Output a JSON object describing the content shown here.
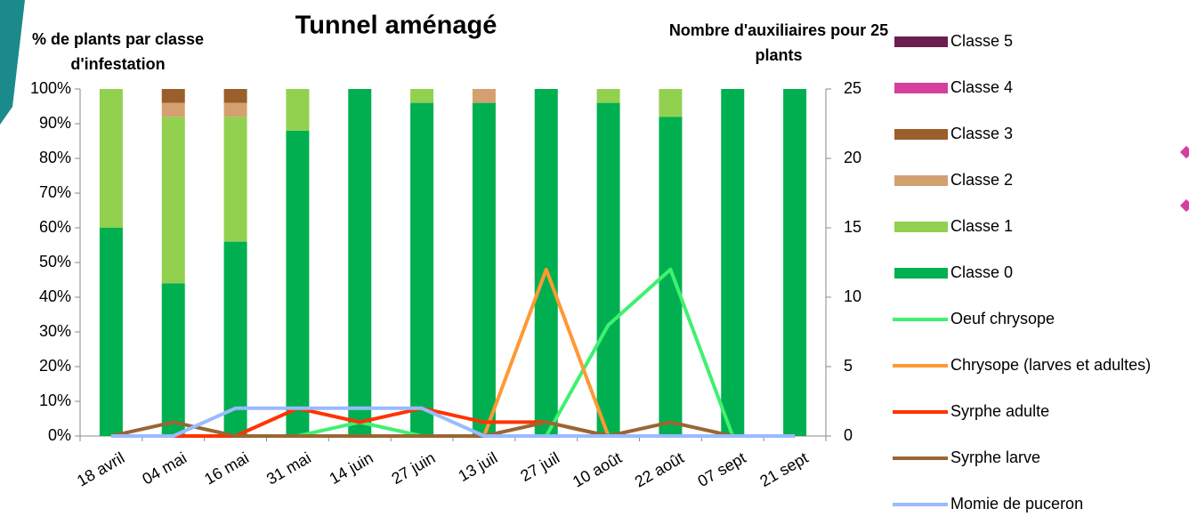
{
  "chart_data": {
    "type": "bar",
    "title": "Tunnel aménagé",
    "y_label": "% de plants par classe d'infestation",
    "y2_label": "Nombre d'auxiliaires pour 25 plants",
    "categories": [
      "18 avril",
      "04 mai",
      "16 mai",
      "31 mai",
      "14 juin",
      "27 juin",
      "13 juil",
      "27 juil",
      "10 août",
      "22 août",
      "07 sept",
      "21 sept"
    ],
    "ylim": [
      0,
      100
    ],
    "yticks": [
      {
        "value": 0,
        "label": "0%"
      },
      {
        "value": 10,
        "label": "10%"
      },
      {
        "value": 20,
        "label": "20%"
      },
      {
        "value": 30,
        "label": "30%"
      },
      {
        "value": 40,
        "label": "40%"
      },
      {
        "value": 50,
        "label": "50%"
      },
      {
        "value": 60,
        "label": "60%"
      },
      {
        "value": 70,
        "label": "70%"
      },
      {
        "value": 80,
        "label": "80%"
      },
      {
        "value": 90,
        "label": "90%"
      },
      {
        "value": 100,
        "label": "100%"
      }
    ],
    "y2lim": [
      0,
      25
    ],
    "y2ticks": [
      0,
      5,
      10,
      15,
      20,
      25
    ],
    "series": [
      {
        "name": "Classe 5",
        "color": "#6b1f4f",
        "values": [
          0,
          0,
          0,
          0,
          0,
          0,
          0,
          0,
          0,
          0,
          0,
          0
        ]
      },
      {
        "name": "Classe 4",
        "color": "#d63fa0",
        "values": [
          0,
          0,
          0,
          0,
          0,
          0,
          0,
          0,
          0,
          0,
          0,
          0
        ]
      },
      {
        "name": "Classe 3",
        "color": "#9a5f2a",
        "values": [
          0,
          4,
          4,
          0,
          0,
          0,
          0,
          0,
          0,
          0,
          0,
          0
        ]
      },
      {
        "name": "Classe 2",
        "color": "#d4a070",
        "values": [
          0,
          4,
          4,
          0,
          0,
          0,
          4,
          0,
          0,
          0,
          0,
          0
        ]
      },
      {
        "name": "Classe 1",
        "color": "#92d050",
        "values": [
          40,
          48,
          36,
          12,
          0,
          4,
          0,
          0,
          4,
          8,
          0,
          0
        ]
      },
      {
        "name": "Classe 0",
        "color": "#00b050",
        "values": [
          60,
          44,
          56,
          88,
          100,
          96,
          96,
          100,
          96,
          92,
          100,
          100
        ]
      },
      {
        "name": "Oeuf chrysope",
        "color": "#40f070",
        "axis": "y2",
        "values": [
          0,
          0,
          0,
          0,
          1,
          0,
          0,
          0,
          8,
          12,
          0,
          0
        ]
      },
      {
        "name": "Chrysope (larves et adultes)",
        "color": "#ff9933",
        "axis": "y2",
        "values": [
          0,
          0,
          0,
          0,
          0,
          0,
          0,
          12,
          0,
          0,
          0,
          0
        ]
      },
      {
        "name": "Syrphe adulte",
        "color": "#ff3300",
        "axis": "y2",
        "values": [
          0,
          0,
          0,
          2,
          1,
          2,
          1,
          1,
          0,
          0,
          0,
          0
        ]
      },
      {
        "name": "Syrphe larve",
        "color": "#996633",
        "axis": "y2",
        "values": [
          0,
          1,
          0,
          0,
          0,
          0,
          0,
          1,
          0,
          1,
          0,
          0
        ]
      },
      {
        "name": "Momie de puceron",
        "color": "#99bbff",
        "axis": "y2",
        "values": [
          0,
          0,
          2,
          2,
          2,
          2,
          0,
          0,
          0,
          0,
          0,
          0
        ]
      }
    ]
  }
}
